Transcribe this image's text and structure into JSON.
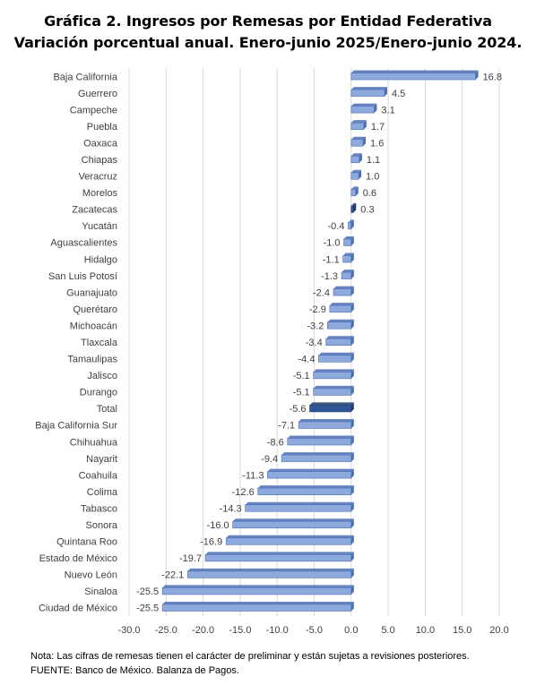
{
  "title_line1": "Gráfica 2. Ingresos por Remesas por Entidad Federativa",
  "title_line2": "Variación porcentual anual. Enero-junio 2025/Enero-junio 2024.",
  "note": "Nota: Las cifras de remesas tienen el carácter de preliminar y están sujetas a revisiones posteriores.",
  "source": "FUENTE: Banco de México. Balanza de Pagos.",
  "colors": {
    "bar": "#8ea9db",
    "bar_side": "#4a6fb5",
    "bar_highlight": "#2f5597",
    "bar_highlight_side": "#1f3a68",
    "grid": "#d9d9d9",
    "text": "#404040"
  },
  "chart_data": {
    "type": "bar",
    "orientation": "horizontal",
    "title": "Gráfica 2. Ingresos por Remesas por Entidad Federativa. Variación porcentual anual. Enero-junio 2025/Enero-junio 2024.",
    "categories": [
      "Baja California",
      "Guerrero",
      "Campeche",
      "Puebla",
      "Oaxaca",
      "Chiapas",
      "Veracruz",
      "Morelos",
      "Zacatecas",
      "Yucatán",
      "Aguascalientes",
      "Hidalgo",
      "San Luis Potosí",
      "Guanajuato",
      "Querétaro",
      "Michoacán",
      "Tlaxcala",
      "Tamaulipas",
      "Jalisco",
      "Durango",
      "Total",
      "Baja California Sur",
      "Chihuahua",
      "Nayarit",
      "Coahuila",
      "Colima",
      "Tabasco",
      "Sonora",
      "Quintana Roo",
      "Estado de México",
      "Nuevo León",
      "Sinaloa",
      "Ciudad de México"
    ],
    "values": [
      16.8,
      4.5,
      3.1,
      1.7,
      1.6,
      1.1,
      1.0,
      0.6,
      0.3,
      -0.4,
      -1.0,
      -1.1,
      -1.3,
      -2.4,
      -2.9,
      -3.2,
      -3.4,
      -4.4,
      -5.1,
      -5.1,
      -5.6,
      -7.1,
      -8.6,
      -9.4,
      -11.3,
      -12.6,
      -14.3,
      -16.0,
      -16.9,
      -19.7,
      -22.1,
      -25.5,
      -25.5
    ],
    "highlighted": [
      "Zacatecas",
      "Total"
    ],
    "xlim": [
      -30,
      20
    ],
    "xticks": [
      "-30.0",
      "-25.0",
      "-20.0",
      "-15.0",
      "-10.0",
      "-5.0",
      "0.0",
      "5.0",
      "10.0",
      "15.0",
      "20.0"
    ],
    "xtick_values": [
      -30,
      -25,
      -20,
      -15,
      -10,
      -5,
      0,
      5,
      10,
      15,
      20
    ],
    "xlabel": "",
    "ylabel": "",
    "grid": true
  }
}
